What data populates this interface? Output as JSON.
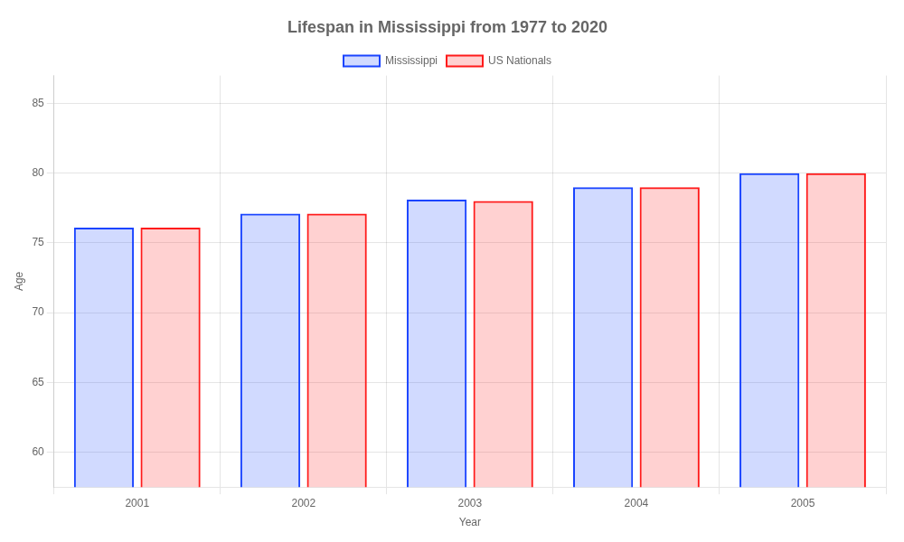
{
  "chart_data": {
    "type": "bar",
    "title": "Lifespan in Mississippi from 1977 to 2020",
    "xlabel": "Year",
    "ylabel": "Age",
    "categories": [
      "2001",
      "2002",
      "2003",
      "2004",
      "2005"
    ],
    "series": [
      {
        "name": "Mississippi",
        "color": "#1a44ff",
        "values": [
          76.1,
          77.1,
          78.1,
          79.0,
          80.0
        ]
      },
      {
        "name": "US Nationals",
        "color": "#ff1a1a",
        "values": [
          76.1,
          77.1,
          78.0,
          79.0,
          80.0
        ]
      }
    ],
    "ylim": [
      57.5,
      87
    ],
    "yticks": [
      60,
      65,
      70,
      75,
      80,
      85
    ],
    "grid": true,
    "legend": "top"
  }
}
